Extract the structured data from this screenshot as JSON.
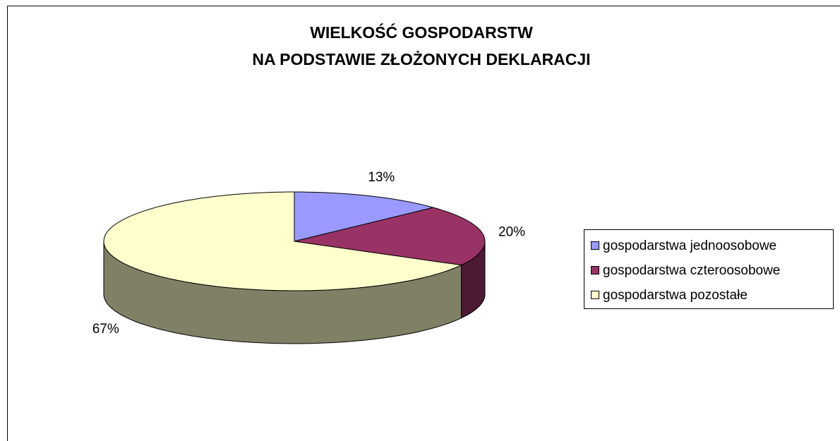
{
  "chart_data": {
    "type": "pie3d",
    "title": [
      "WIELKOŚĆ GOSPODARSTW",
      "NA PODSTAWIE ZŁOŻONYCH DEKLARACJI"
    ],
    "categories": [
      "gospodarstwa jednoosobowe",
      "gospodarstwa czteroosobowe",
      "gospodarstwa pozostałe"
    ],
    "values": [
      13,
      20,
      67
    ],
    "value_labels": [
      "13%",
      "20%",
      "67%"
    ],
    "colors": [
      "#9999ff",
      "#993366",
      "#ffffcc"
    ],
    "legend": "right"
  }
}
